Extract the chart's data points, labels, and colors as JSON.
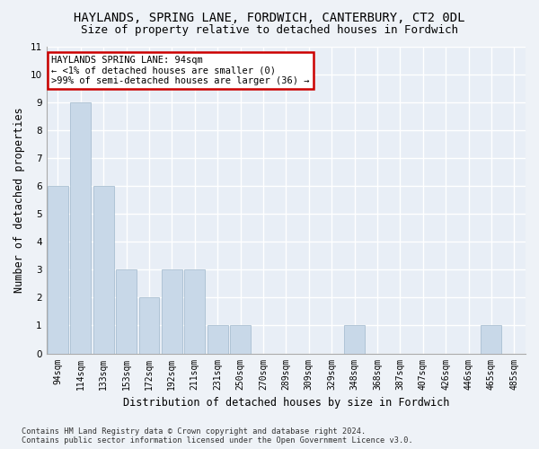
{
  "title": "HAYLANDS, SPRING LANE, FORDWICH, CANTERBURY, CT2 0DL",
  "subtitle": "Size of property relative to detached houses in Fordwich",
  "xlabel": "Distribution of detached houses by size in Fordwich",
  "ylabel": "Number of detached properties",
  "categories": [
    "94sqm",
    "114sqm",
    "133sqm",
    "153sqm",
    "172sqm",
    "192sqm",
    "211sqm",
    "231sqm",
    "250sqm",
    "270sqm",
    "289sqm",
    "309sqm",
    "329sqm",
    "348sqm",
    "368sqm",
    "387sqm",
    "407sqm",
    "426sqm",
    "446sqm",
    "465sqm",
    "485sqm"
  ],
  "values": [
    6,
    9,
    6,
    3,
    2,
    3,
    3,
    1,
    1,
    0,
    0,
    0,
    0,
    1,
    0,
    0,
    0,
    0,
    0,
    1,
    0
  ],
  "bar_color": "#c8d8e8",
  "bar_edge_color": "#a0b8cc",
  "annotation_line1": "HAYLANDS SPRING LANE: 94sqm",
  "annotation_line2": "← <1% of detached houses are smaller (0)",
  "annotation_line3": ">99% of semi-detached houses are larger (36) →",
  "annotation_box_color": "#ffffff",
  "annotation_box_edge_color": "#cc0000",
  "ylim": [
    0,
    11
  ],
  "yticks": [
    0,
    1,
    2,
    3,
    4,
    5,
    6,
    7,
    8,
    9,
    10,
    11
  ],
  "footer_line1": "Contains HM Land Registry data © Crown copyright and database right 2024.",
  "footer_line2": "Contains public sector information licensed under the Open Government Licence v3.0.",
  "background_color": "#eef2f7",
  "plot_bg_color": "#e8eef6",
  "grid_color": "#ffffff",
  "title_fontsize": 10,
  "subtitle_fontsize": 9,
  "axis_label_fontsize": 8.5,
  "tick_fontsize": 7
}
